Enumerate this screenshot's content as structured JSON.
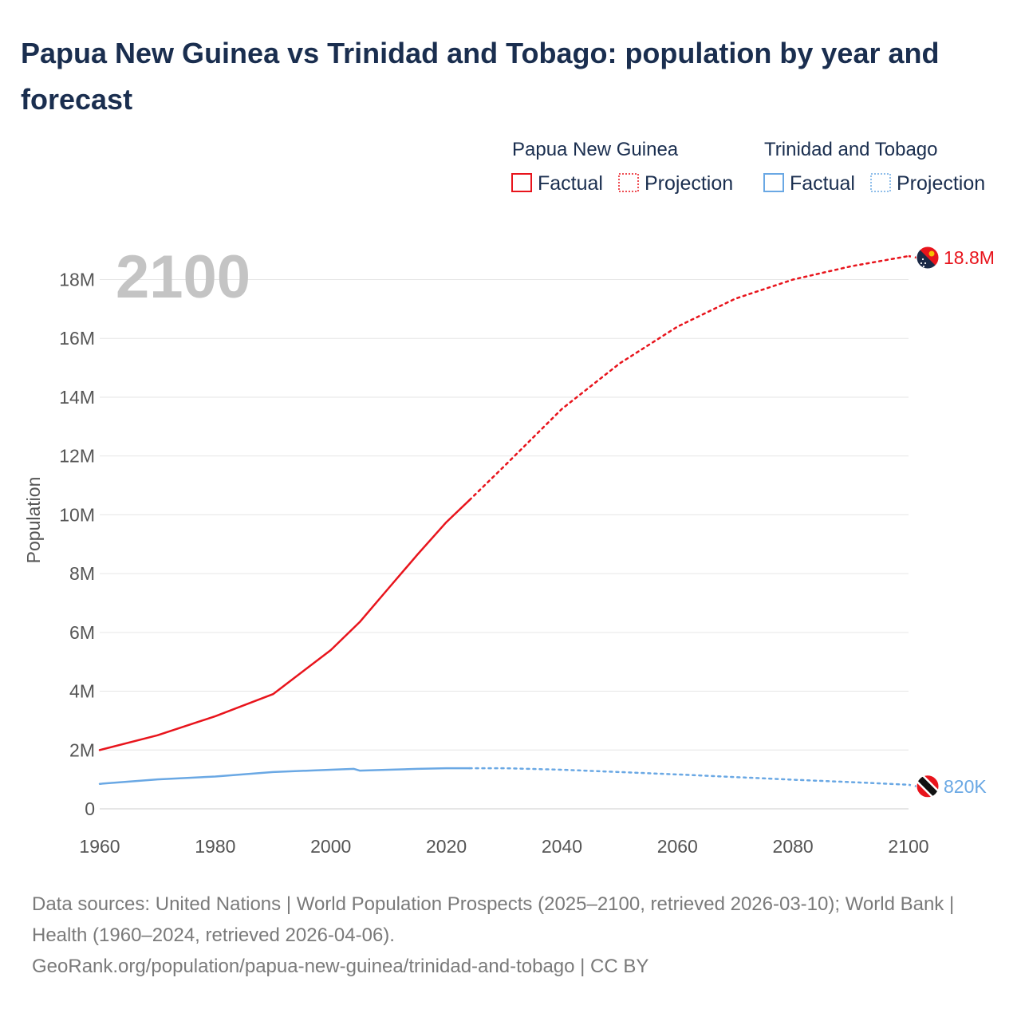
{
  "title": "Papua New Guinea vs Trinidad and Tobago: population by year and forecast",
  "current_year_label": "2100",
  "legend": {
    "groups": [
      {
        "name": "Papua New Guinea",
        "color": "#e8141c",
        "factual": "Factual",
        "projection": "Projection"
      },
      {
        "name": "Trinidad and Tobago",
        "color": "#6aa8e4",
        "factual": "Factual",
        "projection": "Projection"
      }
    ]
  },
  "footer": {
    "sources": "Data sources: United Nations | World Population Prospects (2025–2100, retrieved 2026-03-10); World Bank | Health (1960–2024, retrieved 2026-04-06).",
    "link": "GeoRank.org/population/papua-new-guinea/trinidad-and-tobago | CC BY"
  },
  "chart_data": {
    "type": "line",
    "title": "Papua New Guinea vs Trinidad and Tobago: population by year and forecast",
    "xlabel": "",
    "ylabel": "Population",
    "xlim": [
      1960,
      2100
    ],
    "ylim": [
      0,
      18000000
    ],
    "x_ticks": [
      1960,
      1980,
      2000,
      2020,
      2040,
      2060,
      2080,
      2100
    ],
    "x_tick_labels": [
      "1960",
      "1980",
      "2000",
      "2020",
      "2040",
      "2060",
      "2080",
      "2100"
    ],
    "y_ticks": [
      0,
      2000000,
      4000000,
      6000000,
      8000000,
      10000000,
      12000000,
      14000000,
      16000000,
      18000000
    ],
    "y_tick_labels": [
      "0",
      "2M",
      "4M",
      "6M",
      "8M",
      "10M",
      "12M",
      "14M",
      "16M",
      "18M"
    ],
    "grid": true,
    "legend_position": "top-right",
    "factual_end_year": 2024,
    "series": [
      {
        "name": "Papua New Guinea",
        "color": "#e8141c",
        "end_label": "18.8M",
        "flag": "papua-new-guinea-flag-icon",
        "x": [
          1960,
          1970,
          1980,
          1990,
          2000,
          2005,
          2010,
          2015,
          2020,
          2024,
          2030,
          2040,
          2050,
          2060,
          2070,
          2080,
          2090,
          2100
        ],
        "values": [
          2000000,
          2500000,
          3150000,
          3900000,
          5400000,
          6350000,
          7500000,
          8650000,
          9750000,
          10500000,
          11650000,
          13600000,
          15150000,
          16400000,
          17350000,
          18000000,
          18450000,
          18800000
        ]
      },
      {
        "name": "Trinidad and Tobago",
        "color": "#6aa8e4",
        "end_label": "820K",
        "flag": "trinidad-and-tobago-flag-icon",
        "x": [
          1960,
          1970,
          1980,
          1990,
          2000,
          2004,
          2005,
          2010,
          2015,
          2020,
          2024,
          2030,
          2040,
          2050,
          2060,
          2070,
          2080,
          2090,
          2100
        ],
        "values": [
          850000,
          1000000,
          1100000,
          1250000,
          1330000,
          1360000,
          1300000,
          1330000,
          1360000,
          1380000,
          1380000,
          1380000,
          1330000,
          1250000,
          1170000,
          1080000,
          990000,
          910000,
          820000
        ]
      }
    ]
  }
}
